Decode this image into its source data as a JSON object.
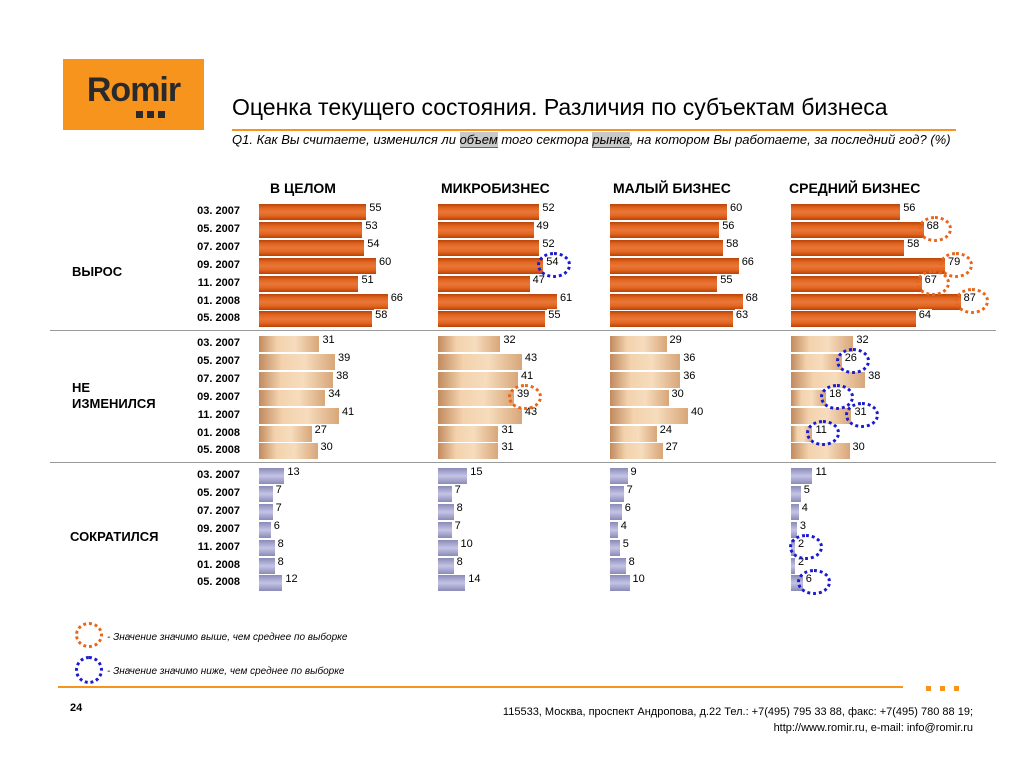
{
  "brand": "Romir",
  "title": "Оценка текущего состояния. Различия по субъектам бизнеса",
  "question": {
    "part1": "Q1. Как Вы считаете, изменился ли ",
    "hl1": "объем",
    "part2": " того сектора ",
    "hl2": "рынка",
    "part3": ", на котором Вы работаете, за последний год? (%)"
  },
  "columns": [
    "В ЦЕЛОМ",
    "МИКРОБИЗНЕС",
    "МАЛЫЙ БИЗНЕС",
    "СРЕДНИЙ БИЗНЕС"
  ],
  "periods": [
    "03. 2007",
    "05. 2007",
    "07. 2007",
    "09. 2007",
    "11. 2007",
    "01. 2008",
    "05. 2008"
  ],
  "groups": [
    {
      "label_line1": "ВЫРОС",
      "label_line2": ""
    },
    {
      "label_line1": "НЕ",
      "label_line2": "ИЗМЕНИЛСЯ"
    },
    {
      "label_line1": "СОКРАТИЛСЯ",
      "label_line2": ""
    }
  ],
  "chart_data": {
    "type": "bar",
    "orientation": "horizontal",
    "title": "Оценка текущего состояния. Различия по субъектам бизнеса",
    "categories": [
      "03. 2007",
      "05. 2007",
      "07. 2007",
      "09. 2007",
      "11. 2007",
      "01. 2008",
      "05. 2008"
    ],
    "panels": [
      {
        "group": "ВЫРОС",
        "series": [
          {
            "name": "В ЦЕЛОМ",
            "values": [
              55,
              53,
              54,
              60,
              51,
              66,
              58
            ]
          },
          {
            "name": "МИКРОБИЗНЕС",
            "values": [
              52,
              49,
              52,
              54,
              47,
              61,
              55
            ]
          },
          {
            "name": "МАЛЫЙ БИЗНЕС",
            "values": [
              60,
              56,
              58,
              66,
              55,
              68,
              63
            ]
          },
          {
            "name": "СРЕДНИЙ БИЗНЕС",
            "values": [
              56,
              68,
              58,
              79,
              67,
              87,
              64
            ]
          }
        ]
      },
      {
        "group": "НЕ ИЗМЕНИЛСЯ",
        "series": [
          {
            "name": "В ЦЕЛОМ",
            "values": [
              31,
              39,
              38,
              34,
              41,
              27,
              30
            ]
          },
          {
            "name": "МИКРОБИЗНЕС",
            "values": [
              32,
              43,
              41,
              39,
              43,
              31,
              31
            ]
          },
          {
            "name": "МАЛЫЙ БИЗНЕС",
            "values": [
              29,
              36,
              36,
              30,
              40,
              24,
              27
            ]
          },
          {
            "name": "СРЕДНИЙ БИЗНЕС",
            "values": [
              32,
              26,
              38,
              18,
              31,
              11,
              30
            ]
          }
        ]
      },
      {
        "group": "СОКРАТИЛСЯ",
        "series": [
          {
            "name": "В ЦЕЛОМ",
            "values": [
              13,
              7,
              7,
              6,
              8,
              8,
              12
            ]
          },
          {
            "name": "МИКРОБИЗНЕС",
            "values": [
              15,
              7,
              8,
              7,
              10,
              8,
              14
            ]
          },
          {
            "name": "МАЛЫЙ БИЗНЕС",
            "values": [
              9,
              7,
              6,
              4,
              5,
              8,
              10
            ]
          },
          {
            "name": "СРЕДНИЙ БИЗНЕС",
            "values": [
              11,
              5,
              4,
              3,
              2,
              2,
              6
            ]
          }
        ]
      }
    ],
    "significance": [
      {
        "group": "ВЫРОС",
        "column": "МИКРОБИЗНЕС",
        "period": "09. 2007",
        "value": 54,
        "type": "lower"
      },
      {
        "group": "ВЫРОС",
        "column": "СРЕДНИЙ БИЗНЕС",
        "period": "05. 2007",
        "value": 68,
        "type": "higher"
      },
      {
        "group": "ВЫРОС",
        "column": "СРЕДНИЙ БИЗНЕС",
        "period": "09. 2007",
        "value": 79,
        "type": "higher"
      },
      {
        "group": "ВЫРОС",
        "column": "СРЕДНИЙ БИЗНЕС",
        "period": "11. 2007",
        "value": 67,
        "type": "higher"
      },
      {
        "group": "ВЫРОС",
        "column": "СРЕДНИЙ БИЗНЕС",
        "period": "01. 2008",
        "value": 87,
        "type": "higher"
      },
      {
        "group": "НЕ ИЗМЕНИЛСЯ",
        "column": "МИКРОБИЗНЕС",
        "period": "09. 2007",
        "value": 39,
        "type": "higher"
      },
      {
        "group": "НЕ ИЗМЕНИЛСЯ",
        "column": "СРЕДНИЙ БИЗНЕС",
        "period": "05. 2007",
        "value": 26,
        "type": "lower"
      },
      {
        "group": "НЕ ИЗМЕНИЛСЯ",
        "column": "СРЕДНИЙ БИЗНЕС",
        "period": "09. 2007",
        "value": 18,
        "type": "lower"
      },
      {
        "group": "НЕ ИЗМЕНИЛСЯ",
        "column": "СРЕДНИЙ БИЗНЕС",
        "period": "11. 2007",
        "value": 31,
        "type": "lower"
      },
      {
        "group": "НЕ ИЗМЕНИЛСЯ",
        "column": "СРЕДНИЙ БИЗНЕС",
        "period": "01. 2008",
        "value": 11,
        "type": "lower"
      },
      {
        "group": "СОКРАТИЛСЯ",
        "column": "СРЕДНИЙ БИЗНЕС",
        "period": "11. 2007",
        "value": 2,
        "type": "lower"
      },
      {
        "group": "СОКРАТИЛСЯ",
        "column": "СРЕДНИЙ БИЗНЕС",
        "period": "05. 2008",
        "value": 6,
        "type": "lower"
      }
    ]
  },
  "colors": {
    "accent": "#f7941d",
    "grow": "#e2661e",
    "same": "#f3d2ad",
    "down": "#b4b4dc",
    "higher": "#e8661a",
    "lower": "#1a1ad0"
  },
  "legend": {
    "higher": "- Значение значимо выше, чем среднее по выборке",
    "lower": "- Значение значимо ниже, чем среднее по выборке"
  },
  "footer": {
    "page": "24",
    "address": "115533, Москва, проспект Андропова, д.22   Тел.: +7(495) 795 33 88, факс: +7(495) 780 88 19;",
    "contacts": "http://www.romir.ru, e-mail: info@romir.ru"
  }
}
